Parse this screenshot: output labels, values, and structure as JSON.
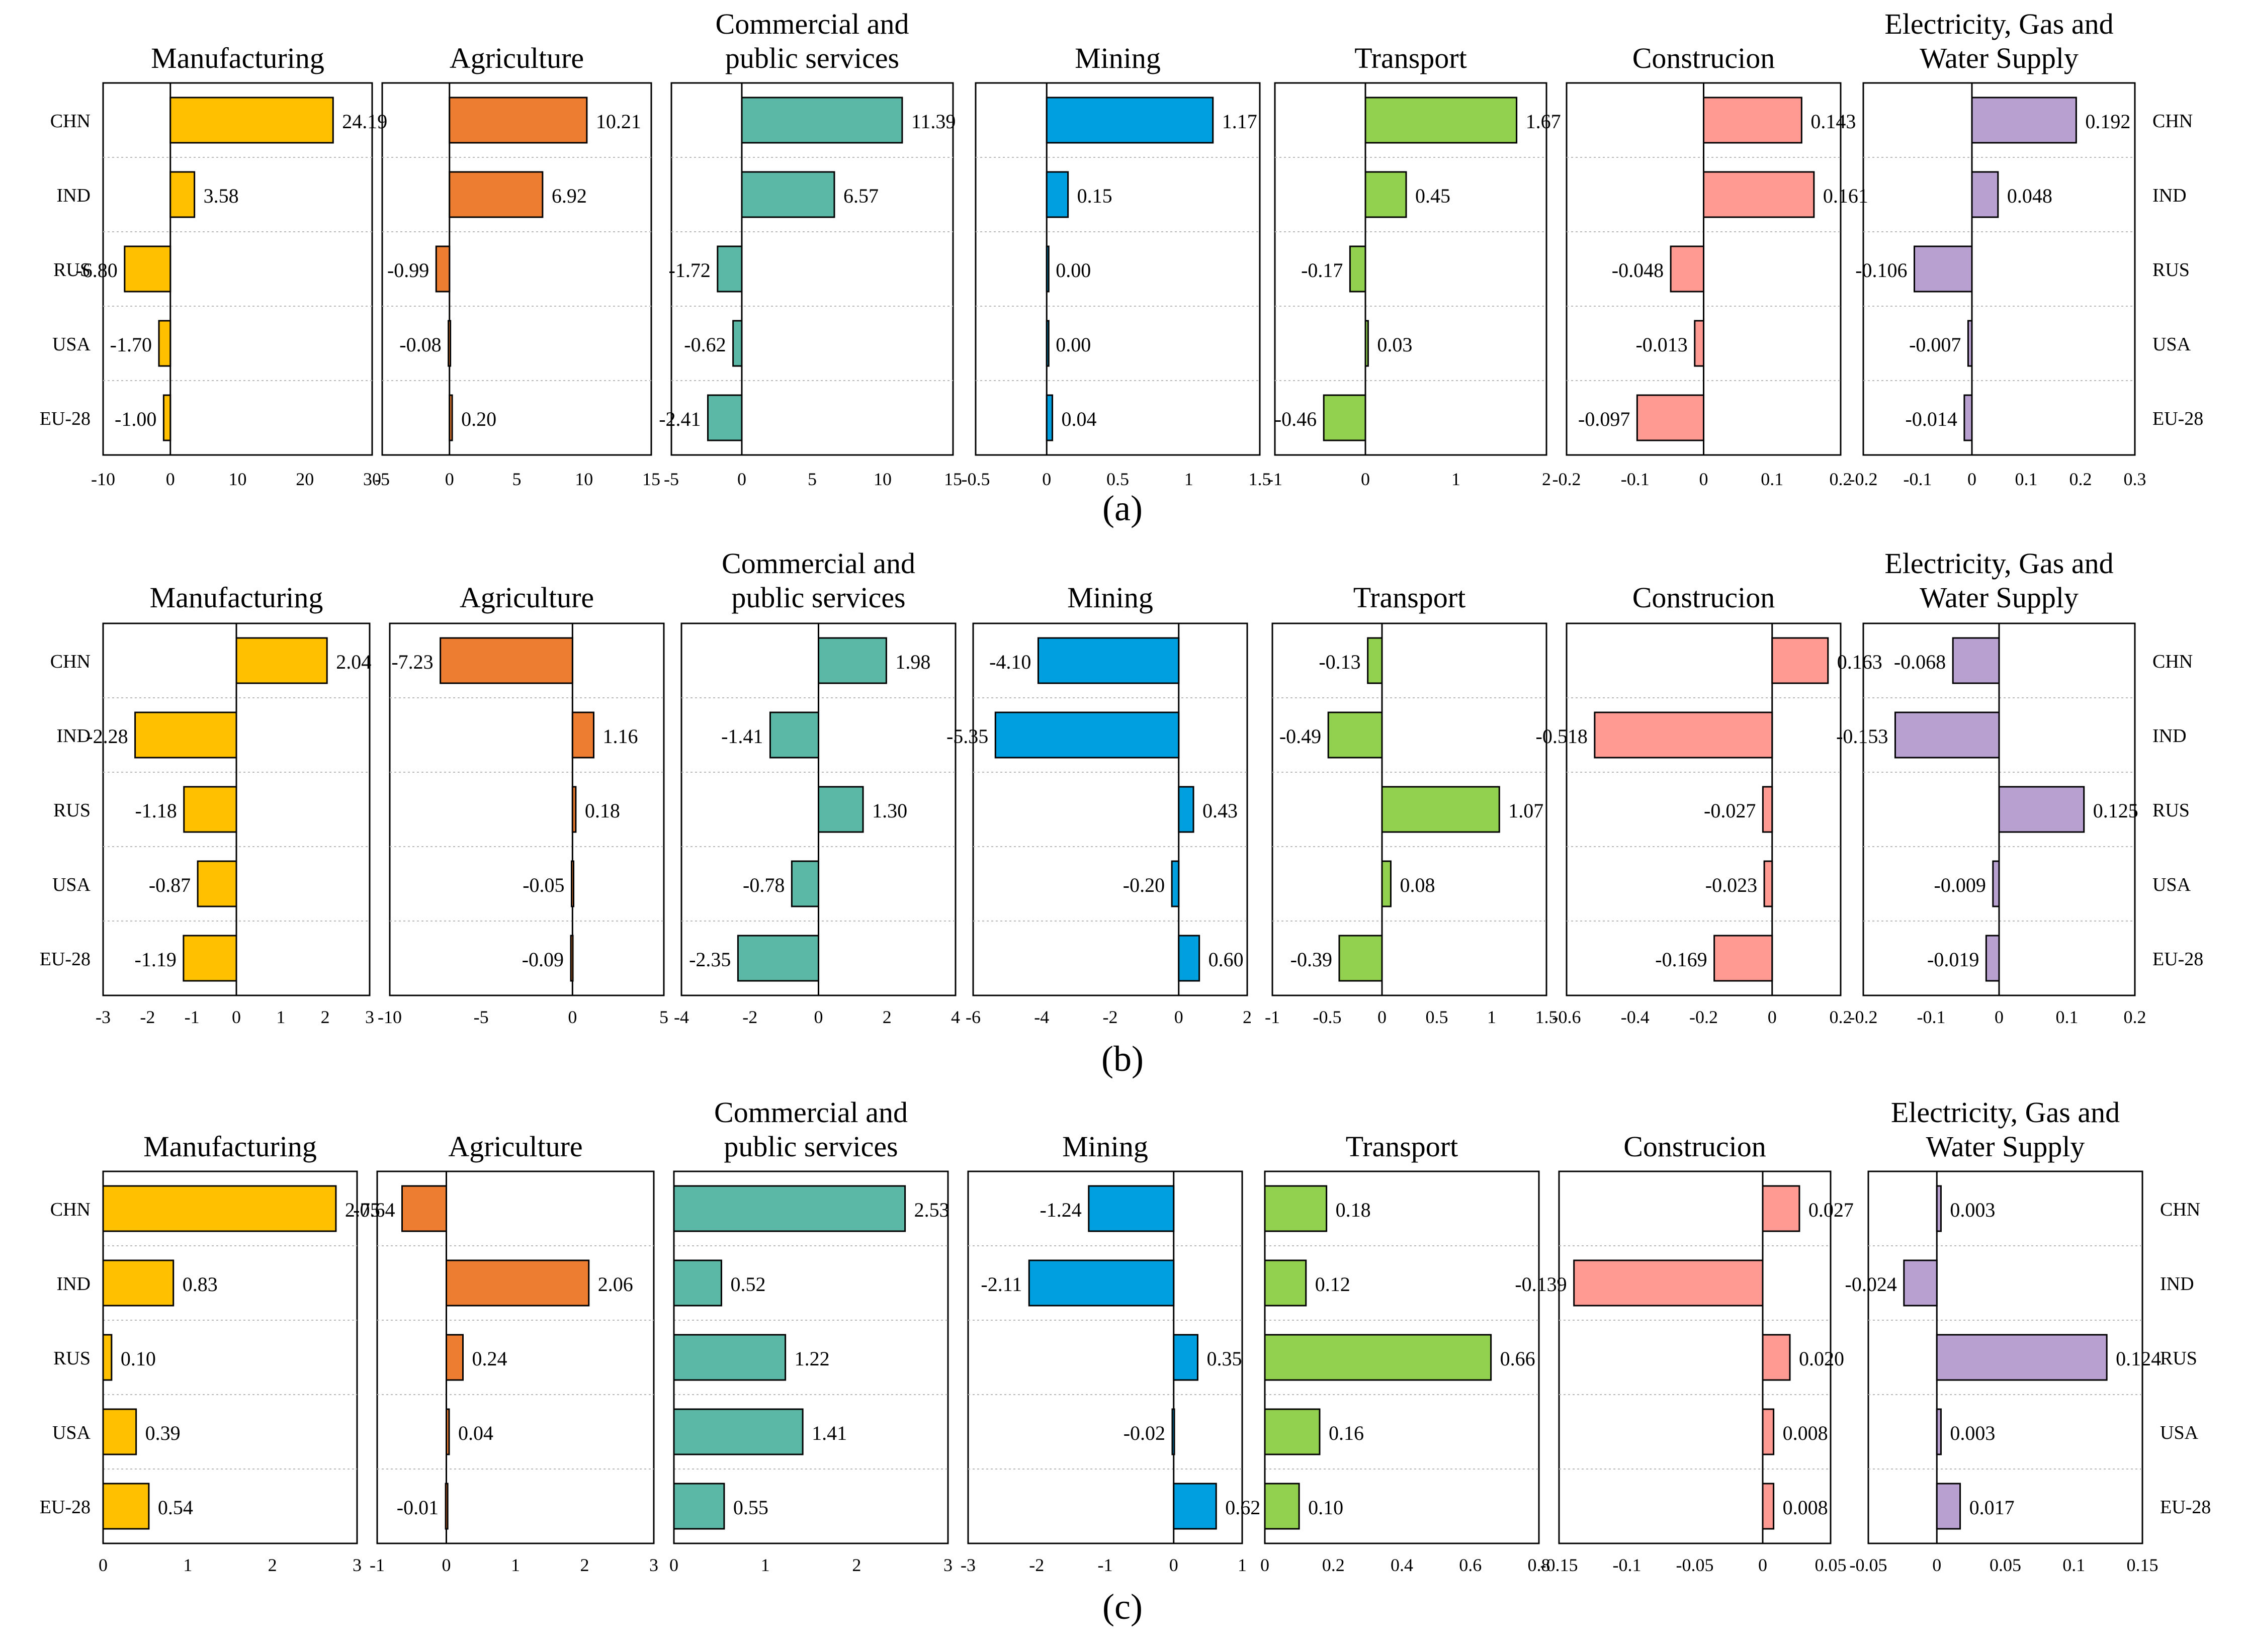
{
  "rows": [
    {
      "label": "(a)"
    },
    {
      "label": "(b)"
    },
    {
      "label": "(c)"
    }
  ],
  "chart_data": [
    {
      "type": "bar",
      "orientation": "horizontal",
      "row": 0,
      "col": 0,
      "title": "Manufacturing",
      "color": "#ffc000",
      "categories": [
        "CHN",
        "IND",
        "RUS",
        "USA",
        "EU-28"
      ],
      "values": [
        24.19,
        3.58,
        -6.8,
        -1.7,
        -1.0
      ],
      "value_labels": [
        "24.19",
        "3.58",
        "-6.80",
        "-1.70",
        "-1.00"
      ],
      "xlim": [
        -10,
        30
      ],
      "xticks": [
        -10,
        0,
        10,
        20,
        30
      ],
      "xtick_labels": [
        "-10",
        "0",
        "10",
        "20",
        "30"
      ],
      "category_axis": "left"
    },
    {
      "type": "bar",
      "orientation": "horizontal",
      "row": 0,
      "col": 1,
      "title": "Agriculture",
      "color": "#ed7d31",
      "categories": [
        "CHN",
        "IND",
        "RUS",
        "USA",
        "EU-28"
      ],
      "values": [
        10.21,
        6.92,
        -0.99,
        -0.08,
        0.2
      ],
      "value_labels": [
        "10.21",
        "6.92",
        "-0.99",
        "-0.08",
        "0.20"
      ],
      "xlim": [
        -5,
        15
      ],
      "xticks": [
        -5,
        0,
        5,
        10,
        15
      ],
      "xtick_labels": [
        "-5",
        "0",
        "5",
        "10",
        "15"
      ]
    },
    {
      "type": "bar",
      "orientation": "horizontal",
      "row": 0,
      "col": 2,
      "title": "Commercial and public services",
      "title_lines": [
        "Commercial and",
        "public services"
      ],
      "color": "#5cb8a6",
      "categories": [
        "CHN",
        "IND",
        "RUS",
        "USA",
        "EU-28"
      ],
      "values": [
        11.39,
        6.57,
        -1.72,
        -0.62,
        -2.41
      ],
      "value_labels": [
        "11.39",
        "6.57",
        "-1.72",
        "-0.62",
        "-2.41"
      ],
      "xlim": [
        -5,
        15
      ],
      "xticks": [
        -5,
        0,
        5,
        10,
        15
      ],
      "xtick_labels": [
        "-5",
        "0",
        "5",
        "10",
        "15"
      ]
    },
    {
      "type": "bar",
      "orientation": "horizontal",
      "row": 0,
      "col": 3,
      "title": "Mining",
      "color": "#00a0e0",
      "categories": [
        "CHN",
        "IND",
        "RUS",
        "USA",
        "EU-28"
      ],
      "values": [
        1.17,
        0.15,
        0.0,
        0.0,
        0.04
      ],
      "value_labels": [
        "1.17",
        "0.15",
        "0.00",
        "0.00",
        "0.04"
      ],
      "xlim": [
        -0.5,
        1.5
      ],
      "xticks": [
        -0.5,
        0,
        0.5,
        1,
        1.5
      ],
      "xtick_labels": [
        "-0.5",
        "0",
        "0.5",
        "1",
        "1.5"
      ]
    },
    {
      "type": "bar",
      "orientation": "horizontal",
      "row": 0,
      "col": 4,
      "title": "Transport",
      "color": "#92d050",
      "categories": [
        "CHN",
        "IND",
        "RUS",
        "USA",
        "EU-28"
      ],
      "values": [
        1.67,
        0.45,
        -0.17,
        0.03,
        -0.46
      ],
      "value_labels": [
        "1.67",
        "0.45",
        "-0.17",
        "0.03",
        "-0.46"
      ],
      "xlim": [
        -1,
        2
      ],
      "xticks": [
        -1,
        0,
        1,
        2
      ],
      "xtick_labels": [
        "-1",
        "0",
        "1",
        "2"
      ]
    },
    {
      "type": "bar",
      "orientation": "horizontal",
      "row": 0,
      "col": 5,
      "title": "Construcion",
      "color": "#ff9a92",
      "categories": [
        "CHN",
        "IND",
        "RUS",
        "USA",
        "EU-28"
      ],
      "values": [
        0.143,
        0.161,
        -0.048,
        -0.013,
        -0.097
      ],
      "value_labels": [
        "0.143",
        "0.161",
        "-0.048",
        "-0.013",
        "-0.097"
      ],
      "xlim": [
        -0.2,
        0.2
      ],
      "xticks": [
        -0.2,
        -0.1,
        0,
        0.1,
        0.2
      ],
      "xtick_labels": [
        "-0.2",
        "-0.1",
        "0",
        "0.1",
        "0.2"
      ]
    },
    {
      "type": "bar",
      "orientation": "horizontal",
      "row": 0,
      "col": 6,
      "title": "Electricity, Gas and Water Supply",
      "title_lines": [
        "Electricity, Gas and",
        "Water Supply"
      ],
      "color": "#b8a0d0",
      "categories": [
        "CHN",
        "IND",
        "RUS",
        "USA",
        "EU-28"
      ],
      "values": [
        0.192,
        0.048,
        -0.106,
        -0.007,
        -0.014
      ],
      "value_labels": [
        "0.192",
        "0.048",
        "-0.106",
        "-0.007",
        "-0.014"
      ],
      "xlim": [
        -0.2,
        0.3
      ],
      "xticks": [
        -0.2,
        -0.1,
        0,
        0.1,
        0.2,
        0.3
      ],
      "xtick_labels": [
        "-0.2",
        "-0.1",
        "0",
        "0.1",
        "0.2",
        "0.3"
      ],
      "category_axis": "right"
    },
    {
      "type": "bar",
      "orientation": "horizontal",
      "row": 1,
      "col": 0,
      "title": "Manufacturing",
      "color": "#ffc000",
      "categories": [
        "CHN",
        "IND",
        "RUS",
        "USA",
        "EU-28"
      ],
      "values": [
        2.04,
        -2.28,
        -1.18,
        -0.87,
        -1.19
      ],
      "value_labels": [
        "2.04",
        "-2.28",
        "-1.18",
        "-0.87",
        "-1.19"
      ],
      "xlim": [
        -3,
        3
      ],
      "xticks": [
        -3,
        -2,
        -1,
        0,
        1,
        2,
        3
      ],
      "xtick_labels": [
        "-3",
        "-2",
        "-1",
        "0",
        "1",
        "2",
        "3"
      ],
      "category_axis": "left"
    },
    {
      "type": "bar",
      "orientation": "horizontal",
      "row": 1,
      "col": 1,
      "title": "Agriculture",
      "color": "#ed7d31",
      "categories": [
        "CHN",
        "IND",
        "RUS",
        "USA",
        "EU-28"
      ],
      "values": [
        -7.23,
        1.16,
        0.18,
        -0.05,
        -0.09
      ],
      "value_labels": [
        "-7.23",
        "1.16",
        "0.18",
        "-0.05",
        "-0.09"
      ],
      "xlim": [
        -10,
        5
      ],
      "xticks": [
        -10,
        -5,
        0,
        5
      ],
      "xtick_labels": [
        "-10",
        "-5",
        "0",
        "5"
      ]
    },
    {
      "type": "bar",
      "orientation": "horizontal",
      "row": 1,
      "col": 2,
      "title": "Commercial and public services",
      "title_lines": [
        "Commercial and",
        "public services"
      ],
      "color": "#5cb8a6",
      "categories": [
        "CHN",
        "IND",
        "RUS",
        "USA",
        "EU-28"
      ],
      "values": [
        1.98,
        -1.41,
        1.3,
        -0.78,
        -2.35
      ],
      "value_labels": [
        "1.98",
        "-1.41",
        "1.30",
        "-0.78",
        "-2.35"
      ],
      "xlim": [
        -4,
        4
      ],
      "xticks": [
        -4,
        -2,
        0,
        2,
        4
      ],
      "xtick_labels": [
        "-4",
        "-2",
        "0",
        "2",
        "4"
      ]
    },
    {
      "type": "bar",
      "orientation": "horizontal",
      "row": 1,
      "col": 3,
      "title": "Mining",
      "color": "#00a0e0",
      "categories": [
        "CHN",
        "IND",
        "RUS",
        "USA",
        "EU-28"
      ],
      "values": [
        -4.1,
        -5.35,
        0.43,
        -0.2,
        0.6
      ],
      "value_labels": [
        "-4.10",
        "-5.35",
        "0.43",
        "-0.20",
        "0.60"
      ],
      "xlim": [
        -6,
        2
      ],
      "xticks": [
        -6,
        -4,
        -2,
        0,
        2
      ],
      "xtick_labels": [
        "-6",
        "-4",
        "-2",
        "0",
        "2"
      ]
    },
    {
      "type": "bar",
      "orientation": "horizontal",
      "row": 1,
      "col": 4,
      "title": "Transport",
      "color": "#92d050",
      "categories": [
        "CHN",
        "IND",
        "RUS",
        "USA",
        "EU-28"
      ],
      "values": [
        -0.13,
        -0.49,
        1.07,
        0.08,
        -0.39
      ],
      "value_labels": [
        "-0.13",
        "-0.49",
        "1.07",
        "0.08",
        "-0.39"
      ],
      "xlim": [
        -1,
        1.5
      ],
      "xticks": [
        -1,
        -0.5,
        0,
        0.5,
        1,
        1.5
      ],
      "xtick_labels": [
        "-1",
        "-0.5",
        "0",
        "0.5",
        "1",
        "1.5"
      ]
    },
    {
      "type": "bar",
      "orientation": "horizontal",
      "row": 1,
      "col": 5,
      "title": "Construcion",
      "color": "#ff9a92",
      "categories": [
        "CHN",
        "IND",
        "RUS",
        "USA",
        "EU-28"
      ],
      "values": [
        0.163,
        -0.518,
        -0.027,
        -0.023,
        -0.169
      ],
      "value_labels": [
        "0.163",
        "-0.518",
        "-0.027",
        "-0.023",
        "-0.169"
      ],
      "xlim": [
        -0.6,
        0.2
      ],
      "xticks": [
        -0.6,
        -0.4,
        -0.2,
        0,
        0.2
      ],
      "xtick_labels": [
        "-0.6",
        "-0.4",
        "-0.2",
        "0",
        "0.2"
      ]
    },
    {
      "type": "bar",
      "orientation": "horizontal",
      "row": 1,
      "col": 6,
      "title": "Electricity, Gas and Water Supply",
      "title_lines": [
        "Electricity, Gas and",
        "Water Supply"
      ],
      "color": "#b8a0d0",
      "categories": [
        "CHN",
        "IND",
        "RUS",
        "USA",
        "EU-28"
      ],
      "values": [
        -0.068,
        -0.153,
        0.125,
        -0.009,
        -0.019
      ],
      "value_labels": [
        "-0.068",
        "-0.153",
        "0.125",
        "-0.009",
        "-0.019"
      ],
      "xlim": [
        -0.2,
        0.2
      ],
      "xticks": [
        -0.2,
        -0.1,
        0,
        0.1,
        0.2
      ],
      "xtick_labels": [
        "-0.2",
        "-0.1",
        "0",
        "0.1",
        "0.2"
      ],
      "category_axis": "right"
    },
    {
      "type": "bar",
      "orientation": "horizontal",
      "row": 2,
      "col": 0,
      "title": "Manufacturing",
      "color": "#ffc000",
      "categories": [
        "CHN",
        "IND",
        "RUS",
        "USA",
        "EU-28"
      ],
      "values": [
        2.75,
        0.83,
        0.1,
        0.39,
        0.54
      ],
      "value_labels": [
        "2.75",
        "0.83",
        "0.10",
        "0.39",
        "0.54"
      ],
      "xlim": [
        0,
        3
      ],
      "xticks": [
        0,
        1,
        2,
        3
      ],
      "xtick_labels": [
        "0",
        "1",
        "2",
        "3"
      ],
      "category_axis": "left"
    },
    {
      "type": "bar",
      "orientation": "horizontal",
      "row": 2,
      "col": 1,
      "title": "Agriculture",
      "color": "#ed7d31",
      "categories": [
        "CHN",
        "IND",
        "RUS",
        "USA",
        "EU-28"
      ],
      "values": [
        -0.64,
        2.06,
        0.24,
        0.04,
        -0.01
      ],
      "value_labels": [
        "-0.64",
        "2.06",
        "0.24",
        "0.04",
        "-0.01"
      ],
      "xlim": [
        -1,
        3
      ],
      "xticks": [
        -1,
        0,
        1,
        2,
        3
      ],
      "xtick_labels": [
        "-1",
        "0",
        "1",
        "2",
        "3"
      ]
    },
    {
      "type": "bar",
      "orientation": "horizontal",
      "row": 2,
      "col": 2,
      "title": "Commercial and public services",
      "title_lines": [
        "Commercial and",
        "public services"
      ],
      "color": "#5cb8a6",
      "categories": [
        "CHN",
        "IND",
        "RUS",
        "USA",
        "EU-28"
      ],
      "values": [
        2.53,
        0.52,
        1.22,
        1.41,
        0.55
      ],
      "value_labels": [
        "2.53",
        "0.52",
        "1.22",
        "1.41",
        "0.55"
      ],
      "xlim": [
        0,
        3
      ],
      "xticks": [
        0,
        1,
        2,
        3
      ],
      "xtick_labels": [
        "0",
        "1",
        "2",
        "3"
      ]
    },
    {
      "type": "bar",
      "orientation": "horizontal",
      "row": 2,
      "col": 3,
      "title": "Mining",
      "color": "#00a0e0",
      "categories": [
        "CHN",
        "IND",
        "RUS",
        "USA",
        "EU-28"
      ],
      "values": [
        -1.24,
        -2.11,
        0.35,
        -0.02,
        0.62
      ],
      "value_labels": [
        "-1.24",
        "-2.11",
        "0.35",
        "-0.02",
        "0.62"
      ],
      "xlim": [
        -3,
        1
      ],
      "xticks": [
        -3,
        -2,
        -1,
        0,
        1
      ],
      "xtick_labels": [
        "-3",
        "-2",
        "-1",
        "0",
        "1"
      ]
    },
    {
      "type": "bar",
      "orientation": "horizontal",
      "row": 2,
      "col": 4,
      "title": "Transport",
      "color": "#92d050",
      "categories": [
        "CHN",
        "IND",
        "RUS",
        "USA",
        "EU-28"
      ],
      "values": [
        0.18,
        0.12,
        0.66,
        0.16,
        0.1
      ],
      "value_labels": [
        "0.18",
        "0.12",
        "0.66",
        "0.16",
        "0.10"
      ],
      "xlim": [
        0,
        0.8
      ],
      "xticks": [
        0,
        0.2,
        0.4,
        0.6,
        0.8
      ],
      "xtick_labels": [
        "0",
        "0.2",
        "0.4",
        "0.6",
        "0.8"
      ]
    },
    {
      "type": "bar",
      "orientation": "horizontal",
      "row": 2,
      "col": 5,
      "title": "Construcion",
      "color": "#ff9a92",
      "categories": [
        "CHN",
        "IND",
        "RUS",
        "USA",
        "EU-28"
      ],
      "values": [
        0.027,
        -0.139,
        0.02,
        0.008,
        0.008
      ],
      "value_labels": [
        "0.027",
        "-0.139",
        "0.020",
        "0.008",
        "0.008"
      ],
      "xlim": [
        -0.15,
        0.05
      ],
      "xticks": [
        -0.15,
        -0.1,
        -0.05,
        0,
        0.05
      ],
      "xtick_labels": [
        "-0.15",
        "-0.1",
        "-0.05",
        "0",
        "0.05"
      ]
    },
    {
      "type": "bar",
      "orientation": "horizontal",
      "row": 2,
      "col": 6,
      "title": "Electricity, Gas and Water Supply",
      "title_lines": [
        "Electricity, Gas and",
        "Water Supply"
      ],
      "color": "#b8a0d0",
      "categories": [
        "CHN",
        "IND",
        "RUS",
        "USA",
        "EU-28"
      ],
      "values": [
        0.003,
        -0.024,
        0.124,
        0.003,
        0.017
      ],
      "value_labels": [
        "0.003",
        "-0.024",
        "0.124",
        "0.003",
        "0.017"
      ],
      "xlim": [
        -0.05,
        0.15
      ],
      "xticks": [
        -0.05,
        0,
        0.05,
        0.1,
        0.15
      ],
      "xtick_labels": [
        "-0.05",
        "0",
        "0.05",
        "0.1",
        "0.15"
      ],
      "category_axis": "right"
    }
  ]
}
